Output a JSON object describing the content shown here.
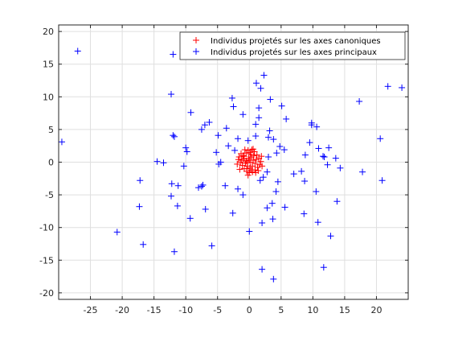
{
  "chart_data": {
    "type": "scatter",
    "title": "",
    "xlabel": "",
    "ylabel": "",
    "xlim": [
      -30,
      25
    ],
    "ylim": [
      -21,
      21
    ],
    "xticks": [
      -25,
      -20,
      -15,
      -10,
      -5,
      0,
      5,
      10,
      15,
      20
    ],
    "yticks": [
      -20,
      -15,
      -10,
      -5,
      0,
      5,
      10,
      15,
      20
    ],
    "xtick_labels": [
      "-25",
      "-20",
      "-15",
      "-10",
      "-5",
      "0",
      "5",
      "10",
      "15",
      "20"
    ],
    "ytick_labels": [
      "-20",
      "-15",
      "-10",
      "-5",
      "0",
      "5",
      "10",
      "15",
      "20"
    ],
    "grid": true,
    "legend_position": "top-right",
    "series": [
      {
        "name": "Individus projetés sur les axes canoniques",
        "color": "#ff0000",
        "marker": "plus",
        "points": [
          [
            -1.2,
            0.3
          ],
          [
            -0.8,
            0.9
          ],
          [
            -0.5,
            1.4
          ],
          [
            -0.2,
            1.8
          ],
          [
            0.1,
            1.5
          ],
          [
            0.4,
            1.9
          ],
          [
            0.8,
            1.6
          ],
          [
            1.2,
            1.1
          ],
          [
            1.5,
            0.6
          ],
          [
            1.8,
            0.1
          ],
          [
            1.6,
            -0.4
          ],
          [
            1.3,
            -0.8
          ],
          [
            0.9,
            -1.2
          ],
          [
            0.5,
            -1.5
          ],
          [
            0.0,
            -1.6
          ],
          [
            -0.4,
            -1.4
          ],
          [
            -0.8,
            -1.0
          ],
          [
            -1.1,
            -0.5
          ],
          [
            -1.4,
            0.0
          ],
          [
            -0.9,
            0.5
          ],
          [
            -0.5,
            0.2
          ],
          [
            -0.1,
            0.6
          ],
          [
            0.3,
            0.8
          ],
          [
            0.6,
            0.3
          ],
          [
            0.9,
            -0.2
          ],
          [
            0.5,
            -0.6
          ],
          [
            0.1,
            -0.9
          ],
          [
            -0.3,
            -0.6
          ],
          [
            -0.6,
            -0.2
          ],
          [
            0.2,
            0.0
          ],
          [
            -1.6,
            0.8
          ],
          [
            -1.3,
            1.3
          ],
          [
            1.9,
            0.9
          ],
          [
            2.0,
            -0.6
          ],
          [
            1.0,
            -1.6
          ],
          [
            -0.2,
            -2.0
          ],
          [
            -1.5,
            -1.1
          ],
          [
            -1.9,
            -0.3
          ],
          [
            0.6,
            2.0
          ],
          [
            -0.7,
            1.9
          ],
          [
            0.0,
            0.3
          ],
          [
            0.7,
            1.0
          ],
          [
            1.1,
            0.4
          ],
          [
            -0.4,
            -1.0
          ],
          [
            0.3,
            -1.2
          ],
          [
            -1.0,
            1.0
          ],
          [
            1.4,
            -1.3
          ],
          [
            -1.7,
            0.4
          ],
          [
            0.2,
            1.2
          ],
          [
            -0.3,
            0.0
          ]
        ]
      },
      {
        "name": "Individus projetés sur les axes principaux",
        "color": "#0000ff",
        "marker": "plus",
        "points": [
          [
            -27.0,
            17.0
          ],
          [
            -12.0,
            16.5
          ],
          [
            -12.3,
            10.4
          ],
          [
            -9.2,
            7.6
          ],
          [
            -7.5,
            5.0
          ],
          [
            -7.0,
            5.7
          ],
          [
            -6.3,
            6.1
          ],
          [
            -12.0,
            4.1
          ],
          [
            -11.8,
            3.9
          ],
          [
            -10.0,
            2.2
          ],
          [
            -9.8,
            1.6
          ],
          [
            -14.5,
            0.1
          ],
          [
            -13.5,
            -0.1
          ],
          [
            -10.3,
            -0.6
          ],
          [
            -17.2,
            -2.8
          ],
          [
            -12.2,
            -3.3
          ],
          [
            -11.2,
            -3.6
          ],
          [
            -8.0,
            -3.9
          ],
          [
            -7.5,
            -3.7
          ],
          [
            -7.3,
            -3.5
          ],
          [
            -12.3,
            -5.2
          ],
          [
            -11.3,
            -6.7
          ],
          [
            -17.3,
            -6.8
          ],
          [
            -9.3,
            -8.6
          ],
          [
            -6.9,
            -7.2
          ],
          [
            -20.8,
            -10.7
          ],
          [
            -16.7,
            -12.6
          ],
          [
            -11.8,
            -13.7
          ],
          [
            -5.9,
            -12.8
          ],
          [
            -3.8,
            -3.6
          ],
          [
            -2.6,
            -7.8
          ],
          [
            -1.0,
            -5.0
          ],
          [
            -1.8,
            -4.1
          ],
          [
            -5.2,
            1.5
          ],
          [
            -4.8,
            -0.3
          ],
          [
            -4.5,
            0.0
          ],
          [
            -4.9,
            4.1
          ],
          [
            -3.6,
            5.2
          ],
          [
            -3.3,
            2.5
          ],
          [
            -2.3,
            1.8
          ],
          [
            -1.8,
            3.6
          ],
          [
            -2.5,
            8.5
          ],
          [
            -2.7,
            9.8
          ],
          [
            -1.0,
            7.3
          ],
          [
            1.5,
            8.3
          ],
          [
            1.1,
            12.1
          ],
          [
            1.8,
            11.3
          ],
          [
            2.3,
            13.3
          ],
          [
            3.3,
            9.6
          ],
          [
            5.1,
            8.6
          ],
          [
            5.8,
            6.6
          ],
          [
            1.0,
            5.8
          ],
          [
            1.5,
            6.8
          ],
          [
            -0.2,
            3.3
          ],
          [
            1.0,
            4.0
          ],
          [
            3.2,
            4.8
          ],
          [
            3.0,
            3.8
          ],
          [
            3.8,
            3.5
          ],
          [
            4.8,
            2.4
          ],
          [
            4.3,
            1.4
          ],
          [
            3.0,
            0.8
          ],
          [
            2.8,
            -1.5
          ],
          [
            2.2,
            -2.3
          ],
          [
            1.7,
            -2.8
          ],
          [
            4.5,
            -3.0
          ],
          [
            4.2,
            -4.5
          ],
          [
            3.6,
            -6.3
          ],
          [
            2.8,
            -7.0
          ],
          [
            2.0,
            -9.3
          ],
          [
            3.7,
            -8.7
          ],
          [
            0.0,
            -10.6
          ],
          [
            2.0,
            -16.4
          ],
          [
            3.8,
            -17.9
          ],
          [
            5.6,
            -6.9
          ],
          [
            5.5,
            1.9
          ],
          [
            7.0,
            -1.8
          ],
          [
            8.2,
            -1.4
          ],
          [
            8.8,
            1.1
          ],
          [
            8.7,
            -2.9
          ],
          [
            8.6,
            -7.9
          ],
          [
            9.5,
            3.0
          ],
          [
            9.8,
            5.7
          ],
          [
            9.8,
            6.0
          ],
          [
            10.6,
            5.4
          ],
          [
            10.9,
            2.1
          ],
          [
            10.5,
            -4.5
          ],
          [
            10.8,
            -9.2
          ],
          [
            11.7,
            -16.1
          ],
          [
            12.5,
            2.2
          ],
          [
            12.8,
            -11.3
          ],
          [
            12.3,
            -0.4
          ],
          [
            11.8,
            0.8
          ],
          [
            13.6,
            0.6
          ],
          [
            13.8,
            -6.0
          ],
          [
            14.3,
            -0.9
          ],
          [
            17.3,
            9.3
          ],
          [
            17.8,
            -1.5
          ],
          [
            20.6,
            3.6
          ],
          [
            20.9,
            -2.8
          ],
          [
            21.8,
            11.6
          ],
          [
            24.0,
            11.4
          ],
          [
            -29.5,
            3.1
          ],
          [
            11.6,
            0.9
          ]
        ]
      }
    ]
  }
}
